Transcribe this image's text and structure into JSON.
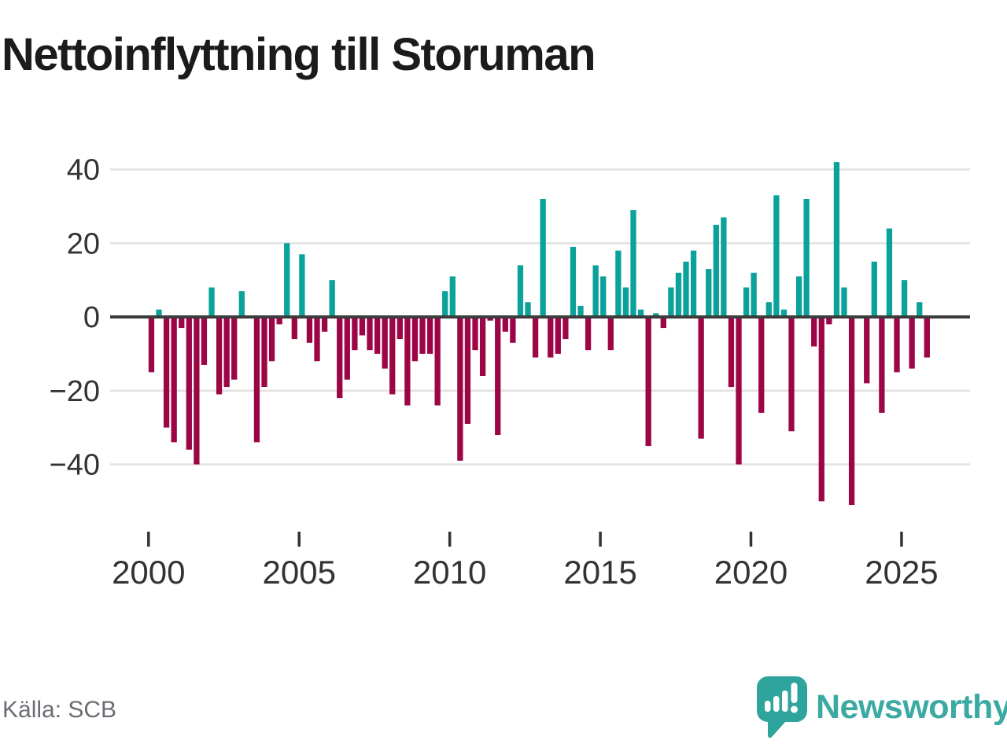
{
  "title": "Nettoinflyttning till Storuman",
  "source": "Källa: SCB",
  "logo": {
    "text": "Newsworthy"
  },
  "colors": {
    "positive": "#0aa29a",
    "negative": "#9d0646",
    "zero_axis": "#3c3c3c",
    "gridline": "#e2e2e2",
    "axis_text": "#333333",
    "title_text": "#1b1b1b",
    "source_text": "#6c6c74",
    "logo_teal": "#3baaa3",
    "logo_bubble": "#2ea49d"
  },
  "chart_data": {
    "type": "bar",
    "title": "Nettoinflyttning till Storuman",
    "unit": "persons (net migration per quarter)",
    "frequency": "quarterly",
    "start_period": "2000 Q1",
    "end_period": "2025 Q4",
    "ylim": [
      -55,
      45
    ],
    "grid": "horizontal",
    "yticks": [
      {
        "value": 40,
        "label": "40"
      },
      {
        "value": 20,
        "label": "20"
      },
      {
        "value": 0,
        "label": "0"
      },
      {
        "value": -20,
        "label": "−20"
      },
      {
        "value": -40,
        "label": "−40"
      }
    ],
    "xticks": [
      {
        "year": 2000,
        "label": "2000"
      },
      {
        "year": 2005,
        "label": "2005"
      },
      {
        "year": 2010,
        "label": "2010"
      },
      {
        "year": 2015,
        "label": "2015"
      },
      {
        "year": 2020,
        "label": "2020"
      },
      {
        "year": 2025,
        "label": "2025"
      }
    ],
    "values": [
      -15,
      2,
      -30,
      -34,
      -3,
      -36,
      -40,
      -13,
      8,
      -21,
      -19,
      -17,
      7,
      0,
      -34,
      -19,
      -12,
      -2,
      20,
      -6,
      17,
      -7,
      -12,
      -4,
      10,
      -22,
      -17,
      -9,
      -5,
      -9,
      -10,
      -14,
      -21,
      -6,
      -24,
      -12,
      -10,
      -10,
      -24,
      7,
      11,
      -39,
      -29,
      -9,
      -16,
      -1,
      -32,
      -4,
      -7,
      14,
      4,
      -11,
      32,
      -11,
      -10,
      -6,
      19,
      3,
      -9,
      14,
      11,
      -9,
      18,
      8,
      29,
      2,
      -35,
      1,
      -3,
      8,
      12,
      15,
      18,
      -33,
      13,
      25,
      27,
      -19,
      -40,
      8,
      12,
      -26,
      4,
      33,
      2,
      -31,
      11,
      32,
      -8,
      -50,
      -2,
      42,
      8,
      -51,
      0,
      -18,
      15,
      -26,
      24,
      -15,
      10,
      -14,
      4,
      -11
    ]
  }
}
